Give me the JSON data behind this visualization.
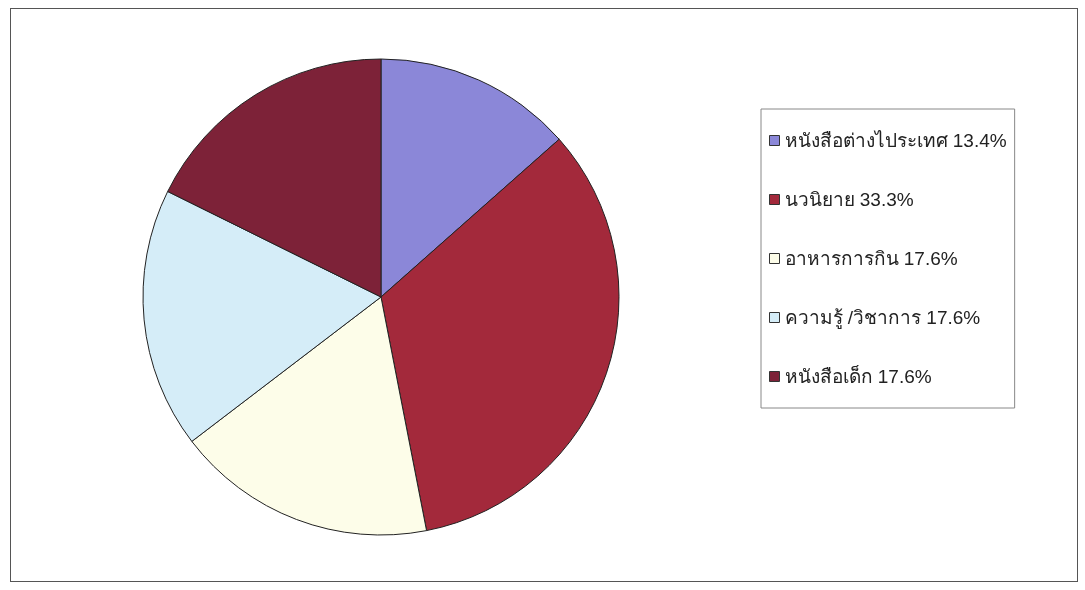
{
  "chart_data": {
    "type": "pie",
    "categories": [
      "หนังสือต่างไประเทศ",
      "นวนิยาย",
      "อาหารการกิน",
      "ความรู้ /วิชาการ",
      "หนังสือเด็ก"
    ],
    "values": [
      13.4,
      33.3,
      17.6,
      17.6,
      17.6
    ],
    "value_labels": [
      "13.4%",
      "33.3%",
      "17.6%",
      "17.6%",
      "17.6%"
    ],
    "colors": [
      "#8b87d8",
      "#a3293b",
      "#fdfde9",
      "#d5edf8",
      "#7d2238"
    ],
    "legend": "right"
  }
}
